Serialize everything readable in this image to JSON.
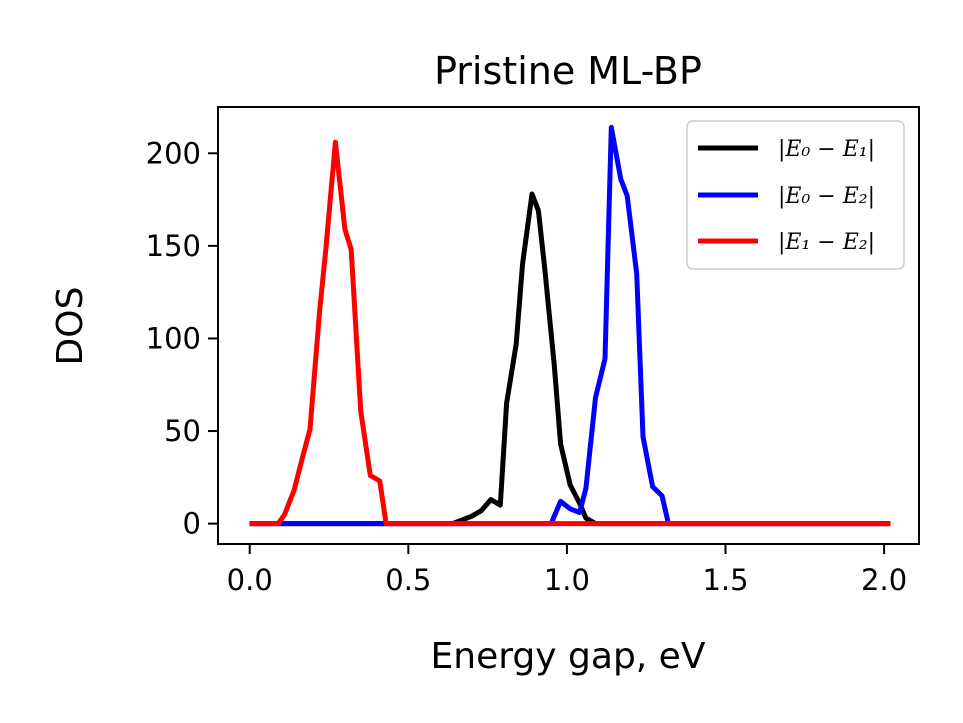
{
  "chart_data": {
    "type": "line",
    "title": "Pristine ML-BP",
    "xlabel": "Energy gap, eV",
    "ylabel": "DOS",
    "xlim": [
      -0.1,
      2.11
    ],
    "ylim": [
      -11,
      225
    ],
    "xticks": [
      0.0,
      0.5,
      1.0,
      1.5,
      2.0
    ],
    "xtick_labels": [
      "0.0",
      "0.5",
      "1.0",
      "1.5",
      "2.0"
    ],
    "yticks": [
      0,
      50,
      100,
      150,
      200
    ],
    "ytick_labels": [
      "0",
      "50",
      "100",
      "150",
      "200"
    ],
    "grid": false,
    "legend_position": "top-right",
    "series": [
      {
        "name": "|E₀ − E₁|",
        "color": "#000000",
        "x": [
          0.0,
          0.64,
          0.67,
          0.7,
          0.73,
          0.76,
          0.79,
          0.81,
          0.84,
          0.86,
          0.89,
          0.91,
          0.93,
          0.96,
          0.98,
          1.01,
          1.04,
          1.06,
          1.09,
          1.12,
          2.02
        ],
        "y": [
          0,
          0,
          2,
          4,
          7,
          13,
          10,
          65,
          97,
          140,
          178,
          169,
          138,
          86,
          43,
          21,
          11,
          3,
          0,
          0,
          0
        ]
      },
      {
        "name": "|E₀ − E₂|",
        "color": "#0000ff",
        "x": [
          0.0,
          0.95,
          0.98,
          1.01,
          1.04,
          1.06,
          1.09,
          1.12,
          1.14,
          1.17,
          1.19,
          1.22,
          1.24,
          1.27,
          1.3,
          1.32,
          2.02
        ],
        "y": [
          0,
          0,
          12,
          8,
          6,
          19,
          68,
          89,
          214,
          186,
          177,
          135,
          47,
          20,
          15,
          0,
          0
        ]
      },
      {
        "name": "|E₁ − E₂|",
        "color": "#ff0000",
        "x": [
          0.0,
          0.09,
          0.11,
          0.14,
          0.17,
          0.19,
          0.22,
          0.24,
          0.27,
          0.3,
          0.32,
          0.35,
          0.38,
          0.41,
          0.43,
          2.02
        ],
        "y": [
          0,
          0,
          5,
          18,
          38,
          51,
          114,
          148,
          206,
          159,
          148,
          61,
          26,
          23,
          0,
          0
        ]
      }
    ]
  }
}
